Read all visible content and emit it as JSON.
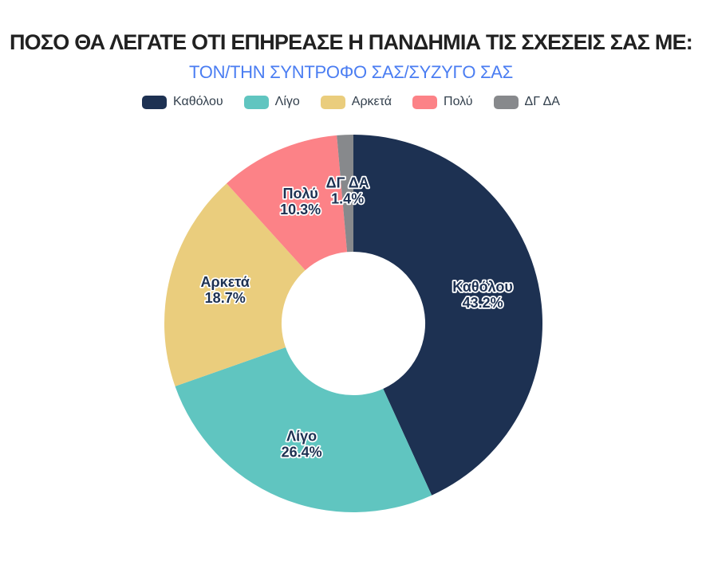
{
  "header": {
    "title": "ΠΟΣΟ ΘΑ ΛΕΓΑΤΕ ΟΤΙ ΕΠΗΡΕΑΣΕ Η ΠΑΝΔΗΜΙΑ ΤΙΣ ΣΧΕΣΕΙΣ ΣΑΣ ΜΕ:",
    "subtitle": "ΤΟΝ/ΤΗΝ ΣΥΝΤΡΟΦΟ ΣΑΣ/ΣΥΖΥΓΟ ΣΑΣ"
  },
  "colors": {
    "background": "#ffffff",
    "title_text": "#212121",
    "subtitle_text": "#4a7df2",
    "legend_text": "#33404d",
    "slice_label_text": "#1d3152",
    "slice_label_halo": "#ffffff"
  },
  "chart_data": {
    "type": "pie",
    "variant": "donut",
    "title": "ΠΟΣΟ ΘΑ ΛΕΓΑΤΕ ΟΤΙ ΕΠΗΡΕΑΣΕ Η ΠΑΝΔΗΜΙΑ ΤΙΣ ΣΧΕΣΕΙΣ ΣΑΣ ΜΕ:",
    "subtitle": "ΤΟΝ/ΤΗΝ ΣΥΝΤΡΟΦΟ ΣΑΣ/ΣΥΖΥΓΟ ΣΑΣ",
    "categories": [
      "Καθόλου",
      "Λίγο",
      "Αρκετά",
      "Πολύ",
      "ΔΓ ΔΑ"
    ],
    "values": [
      43.2,
      26.4,
      18.7,
      10.3,
      1.4
    ],
    "value_texts": [
      "43.2%",
      "26.4%",
      "18.7%",
      "10.3%",
      "1.4%"
    ],
    "unit": "%",
    "colors": [
      "#1d3152",
      "#60c5c0",
      "#eacd7d",
      "#fc8287",
      "#87898c"
    ],
    "start_angle_deg": 0,
    "direction": "clockwise",
    "inner_radius_ratio": 0.38,
    "label_radius_ratio": 0.7,
    "legend_position": "top",
    "labels_inside": true,
    "grid": false
  }
}
